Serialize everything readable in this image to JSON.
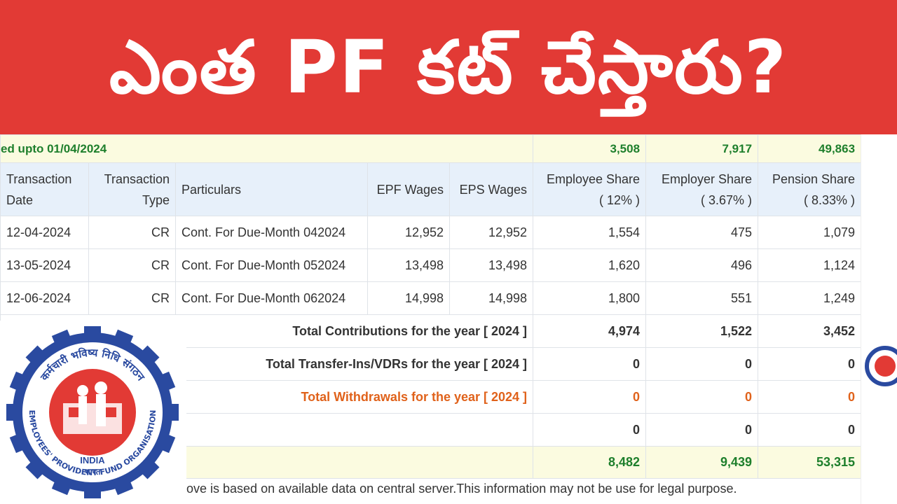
{
  "banner": {
    "title": "ఎంత PF కట్ చేస్తారు?"
  },
  "balance_row": {
    "label": "ed upto 01/04/2024",
    "employee": "3,508",
    "employer": "7,917",
    "pension": "49,863"
  },
  "headers": {
    "transaction_date": "Transaction Date",
    "transaction_type": "Transaction Type",
    "particulars": "Particulars",
    "epf_wages": "EPF Wages",
    "eps_wages": "EPS Wages",
    "employee_share": "Employee Share",
    "employee_pct": "( 12% )",
    "employer_share": "Employer Share",
    "employer_pct": "( 3.67% )",
    "pension_share": "Pension Share",
    "pension_pct": "( 8.33% )"
  },
  "rows": [
    {
      "date": "12-04-2024",
      "type": "CR",
      "particulars": "Cont. For Due-Month 042024",
      "epf": "12,952",
      "eps": "12,952",
      "employee": "1,554",
      "employer": "475",
      "pension": "1,079"
    },
    {
      "date": "13-05-2024",
      "type": "CR",
      "particulars": "Cont. For Due-Month 052024",
      "epf": "13,498",
      "eps": "13,498",
      "employee": "1,620",
      "employer": "496",
      "pension": "1,124"
    },
    {
      "date": "12-06-2024",
      "type": "CR",
      "particulars": "Cont. For Due-Month 062024",
      "epf": "14,998",
      "eps": "14,998",
      "employee": "1,800",
      "employer": "551",
      "pension": "1,249"
    }
  ],
  "totals": {
    "contributions": {
      "label": "Total Contributions for the year [ 2024 ]",
      "employee": "4,974",
      "employer": "1,522",
      "pension": "3,452"
    },
    "transfers": {
      "label": "Total Transfer-Ins/VDRs for the year [ 2024 ]",
      "employee": "0",
      "employer": "0",
      "pension": "0"
    },
    "withdrawals": {
      "label": "Total Withdrawals for the year [ 2024 ]",
      "employee": "0",
      "employer": "0",
      "pension": "0"
    },
    "other": {
      "employee": "0",
      "employer": "0",
      "pension": "0"
    },
    "closing": {
      "employee": "8,482",
      "employer": "9,439",
      "pension": "53,315"
    }
  },
  "footer_note": "ove is based on available data on central server.This information may not be use for legal purpose.",
  "logo": {
    "ring_text_hindi": "कर्मचारी भविष्य निधि संगठन",
    "ring_text_english": "EMPLOYEES' PROVIDENT FUND ORGANISATION",
    "country": "INDIA",
    "country_hindi": "भारत"
  },
  "colors": {
    "banner": "#e23a35",
    "balance_green": "#1e7f2c",
    "withdrawal_orange": "#e0621b",
    "header_bg": "#e7f0fa",
    "logo_blue": "#2a4aa0"
  }
}
